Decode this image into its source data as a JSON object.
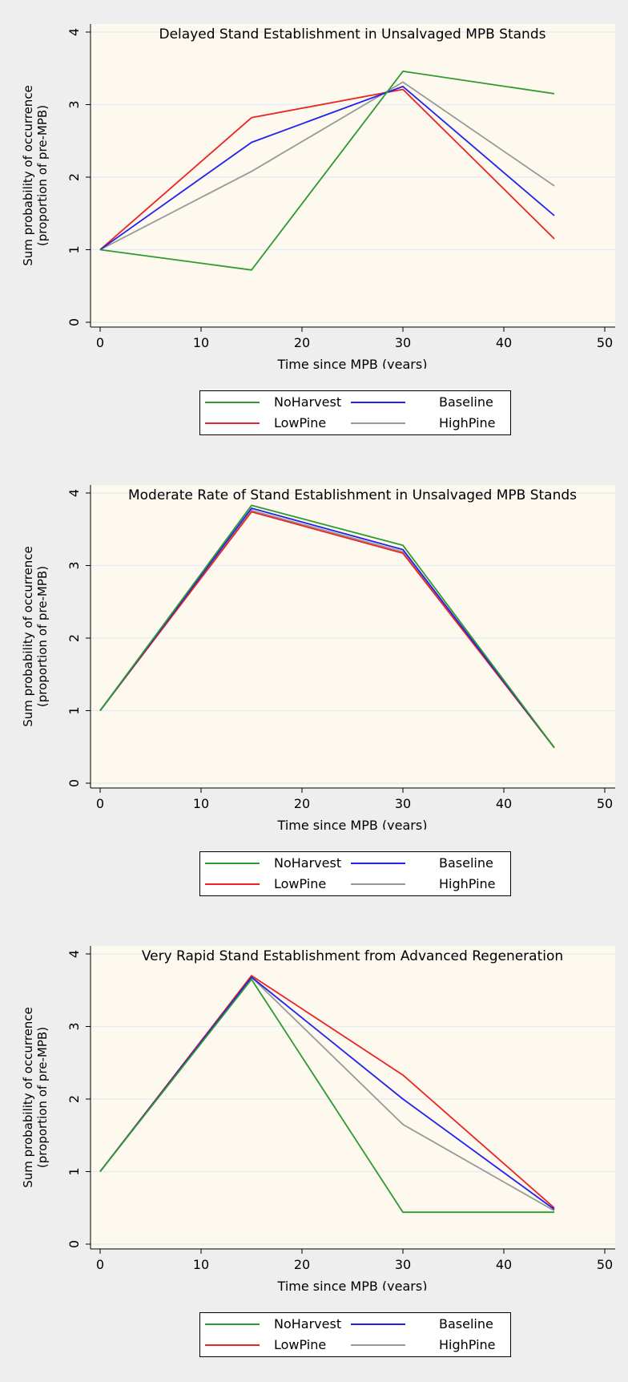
{
  "chart_data": [
    {
      "type": "line",
      "title": "Delayed Stand Establishment in Unsalvaged MPB Stands",
      "xlabel": "Time since MPB (years)",
      "ylabel": [
        "Sum probability of occurrence",
        "(proportion of pre-MPB)"
      ],
      "xlim": [
        0,
        50
      ],
      "ylim": [
        0,
        4
      ],
      "xticks": [
        0,
        10,
        20,
        30,
        40,
        50
      ],
      "yticks": [
        0,
        1,
        2,
        3,
        4
      ],
      "grid": true,
      "legend_position": "bottom",
      "x": [
        0,
        15,
        30,
        45
      ],
      "series": [
        {
          "name": "NoHarvest",
          "color": "#2e9a2e",
          "values": [
            1.0,
            0.72,
            3.46,
            3.15
          ]
        },
        {
          "name": "Baseline",
          "color": "#2222ee",
          "values": [
            1.0,
            2.48,
            3.25,
            1.47
          ]
        },
        {
          "name": "LowPine",
          "color": "#ee2222",
          "values": [
            1.0,
            2.82,
            3.21,
            1.15
          ]
        },
        {
          "name": "HighPine",
          "color": "#999999",
          "values": [
            1.0,
            2.08,
            3.31,
            1.88
          ]
        }
      ]
    },
    {
      "type": "line",
      "title": "Moderate Rate of Stand Establishment in Unsalvaged MPB Stands",
      "xlabel": "Time since MPB (years)",
      "ylabel": [
        "Sum probability of occurrence",
        "(proportion of pre-MPB)"
      ],
      "xlim": [
        0,
        50
      ],
      "ylim": [
        0,
        4
      ],
      "xticks": [
        0,
        10,
        20,
        30,
        40,
        50
      ],
      "yticks": [
        0,
        1,
        2,
        3,
        4
      ],
      "grid": true,
      "legend_position": "bottom",
      "x": [
        0,
        15,
        30,
        45
      ],
      "series": [
        {
          "name": "NoHarvest",
          "color": "#2e9a2e",
          "values": [
            1.0,
            3.83,
            3.28,
            0.49
          ]
        },
        {
          "name": "Baseline",
          "color": "#2222ee",
          "values": [
            1.0,
            3.79,
            3.22,
            0.49
          ]
        },
        {
          "name": "LowPine",
          "color": "#ee2222",
          "values": [
            1.0,
            3.74,
            3.17,
            0.49
          ]
        },
        {
          "name": "HighPine",
          "color": "#999999",
          "values": [
            1.0,
            3.76,
            3.19,
            0.49
          ]
        }
      ]
    },
    {
      "type": "line",
      "title": "Very Rapid Stand Establishment from Advanced Regeneration",
      "xlabel": "Time since MPB (years)",
      "ylabel": [
        "Sum probability of occurrence",
        "(proportion of pre-MPB)"
      ],
      "xlim": [
        0,
        50
      ],
      "ylim": [
        0,
        4
      ],
      "xticks": [
        0,
        10,
        20,
        30,
        40,
        50
      ],
      "yticks": [
        0,
        1,
        2,
        3,
        4
      ],
      "grid": true,
      "legend_position": "bottom",
      "x": [
        0,
        15,
        30,
        45
      ],
      "series": [
        {
          "name": "NoHarvest",
          "color": "#2e9a2e",
          "values": [
            1.0,
            3.65,
            0.44,
            0.44
          ]
        },
        {
          "name": "Baseline",
          "color": "#2222ee",
          "values": [
            1.0,
            3.68,
            2.0,
            0.48
          ]
        },
        {
          "name": "LowPine",
          "color": "#ee2222",
          "values": [
            1.0,
            3.7,
            2.33,
            0.5
          ]
        },
        {
          "name": "HighPine",
          "color": "#999999",
          "values": [
            1.0,
            3.68,
            1.65,
            0.46
          ]
        }
      ]
    }
  ],
  "style": {
    "page_background": "#eeeeee",
    "plot_background": "#fdf9ee",
    "grid_color": "#e5ecf3"
  }
}
